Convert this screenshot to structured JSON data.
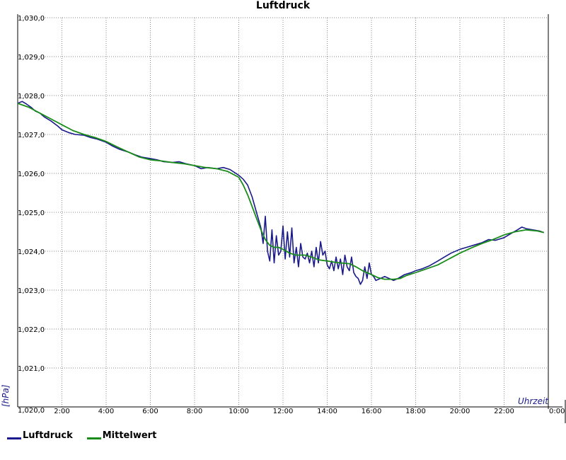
{
  "chart_data": {
    "type": "line",
    "title": "Luftdruck",
    "xlabel": "Uhrzeit",
    "ylabel": "[hPa]",
    "x_tick_labels": [
      "2:00",
      "4:00",
      "6:00",
      "8:00",
      "10:00",
      "12:00",
      "14:00",
      "16:00",
      "18:00",
      "20:00",
      "22:00",
      "0:00"
    ],
    "y_tick_labels": [
      "1,021,0",
      "1,022,0",
      "1,023,0",
      "1,024,0",
      "1,025,0",
      "1,026,0",
      "1,027,0",
      "1,028,0",
      "1,029,0",
      "1,030,0"
    ],
    "origin_label": "1,020,0",
    "xlim": [
      0,
      24
    ],
    "ylim": [
      1020.0,
      1030.0
    ],
    "grid": true,
    "legend_position": "bottom-left",
    "series": [
      {
        "name": "Luftdruck",
        "color": "#1a1a8c",
        "x": [
          0,
          0.2,
          0.4,
          0.6,
          0.8,
          1.0,
          1.2,
          1.5,
          1.8,
          2.0,
          2.3,
          2.6,
          3.0,
          3.3,
          3.6,
          4.0,
          4.3,
          4.6,
          5.0,
          5.3,
          5.6,
          6.0,
          6.3,
          6.6,
          7.0,
          7.3,
          7.6,
          8.0,
          8.3,
          8.6,
          9.0,
          9.3,
          9.6,
          10.0,
          10.2,
          10.4,
          10.6,
          10.8,
          11.0,
          11.1,
          11.2,
          11.3,
          11.4,
          11.5,
          11.6,
          11.7,
          11.8,
          11.9,
          12.0,
          12.1,
          12.2,
          12.3,
          12.4,
          12.5,
          12.6,
          12.7,
          12.8,
          12.9,
          13.0,
          13.1,
          13.2,
          13.3,
          13.4,
          13.5,
          13.6,
          13.7,
          13.8,
          13.9,
          14.0,
          14.1,
          14.2,
          14.3,
          14.4,
          14.5,
          14.6,
          14.7,
          14.8,
          14.9,
          15.0,
          15.1,
          15.2,
          15.3,
          15.4,
          15.5,
          15.6,
          15.7,
          15.8,
          15.9,
          16.0,
          16.1,
          16.2,
          16.4,
          16.6,
          16.8,
          17.0,
          17.2,
          17.5,
          17.8,
          18.0,
          18.3,
          18.6,
          19.0,
          19.3,
          19.6,
          20.0,
          20.3,
          20.6,
          21.0,
          21.3,
          21.6,
          22.0,
          22.3,
          22.6,
          22.8,
          23.0,
          23.3,
          23.6,
          23.8
        ],
        "y": [
          1027.8,
          1027.85,
          1027.78,
          1027.7,
          1027.6,
          1027.55,
          1027.45,
          1027.35,
          1027.22,
          1027.12,
          1027.05,
          1027.0,
          1026.98,
          1026.92,
          1026.88,
          1026.8,
          1026.7,
          1026.62,
          1026.55,
          1026.48,
          1026.42,
          1026.38,
          1026.35,
          1026.3,
          1026.28,
          1026.3,
          1026.25,
          1026.2,
          1026.12,
          1026.15,
          1026.12,
          1026.15,
          1026.1,
          1025.95,
          1025.85,
          1025.7,
          1025.4,
          1025.0,
          1024.6,
          1024.2,
          1024.9,
          1024.0,
          1023.75,
          1024.55,
          1023.7,
          1024.4,
          1023.9,
          1024.0,
          1024.65,
          1023.8,
          1024.5,
          1023.85,
          1024.6,
          1023.7,
          1024.1,
          1023.6,
          1024.2,
          1023.85,
          1023.8,
          1023.95,
          1023.7,
          1024.0,
          1023.6,
          1024.1,
          1023.7,
          1024.25,
          1023.9,
          1024.0,
          1023.65,
          1023.55,
          1023.75,
          1023.5,
          1023.85,
          1023.55,
          1023.8,
          1023.4,
          1023.9,
          1023.6,
          1023.5,
          1023.85,
          1023.45,
          1023.35,
          1023.3,
          1023.15,
          1023.25,
          1023.6,
          1023.3,
          1023.7,
          1023.4,
          1023.35,
          1023.25,
          1023.3,
          1023.35,
          1023.3,
          1023.25,
          1023.3,
          1023.4,
          1023.45,
          1023.5,
          1023.55,
          1023.62,
          1023.75,
          1023.85,
          1023.95,
          1024.05,
          1024.1,
          1024.15,
          1024.22,
          1024.3,
          1024.28,
          1024.35,
          1024.45,
          1024.55,
          1024.62,
          1024.58,
          1024.55,
          1024.52,
          1024.48
        ]
      },
      {
        "name": "Mittelwert",
        "color": "#1a8c1a",
        "x": [
          0,
          0.5,
          1.0,
          1.5,
          2.0,
          2.5,
          3.0,
          3.5,
          4.0,
          4.5,
          5.0,
          5.5,
          6.0,
          6.5,
          7.0,
          7.5,
          8.0,
          8.5,
          9.0,
          9.5,
          10.0,
          10.2,
          10.4,
          10.6,
          10.8,
          11.0,
          11.2,
          11.4,
          11.6,
          11.8,
          12.0,
          12.3,
          12.6,
          13.0,
          13.3,
          13.6,
          14.0,
          14.3,
          14.6,
          15.0,
          15.3,
          15.6,
          16.0,
          16.3,
          16.6,
          17.0,
          17.3,
          17.6,
          18.0,
          18.5,
          19.0,
          19.5,
          20.0,
          20.5,
          21.0,
          21.5,
          22.0,
          22.5,
          23.0,
          23.5,
          23.8
        ],
        "y": [
          1027.8,
          1027.7,
          1027.55,
          1027.4,
          1027.25,
          1027.1,
          1027.0,
          1026.92,
          1026.82,
          1026.68,
          1026.55,
          1026.42,
          1026.35,
          1026.32,
          1026.28,
          1026.25,
          1026.2,
          1026.15,
          1026.12,
          1026.05,
          1025.9,
          1025.7,
          1025.45,
          1025.15,
          1024.85,
          1024.55,
          1024.3,
          1024.15,
          1024.1,
          1024.1,
          1024.05,
          1023.95,
          1023.9,
          1023.9,
          1023.85,
          1023.78,
          1023.75,
          1023.72,
          1023.7,
          1023.68,
          1023.6,
          1023.5,
          1023.4,
          1023.32,
          1023.28,
          1023.28,
          1023.3,
          1023.38,
          1023.45,
          1023.55,
          1023.65,
          1023.8,
          1023.95,
          1024.08,
          1024.2,
          1024.3,
          1024.42,
          1024.5,
          1024.55,
          1024.52,
          1024.48
        ]
      }
    ]
  }
}
